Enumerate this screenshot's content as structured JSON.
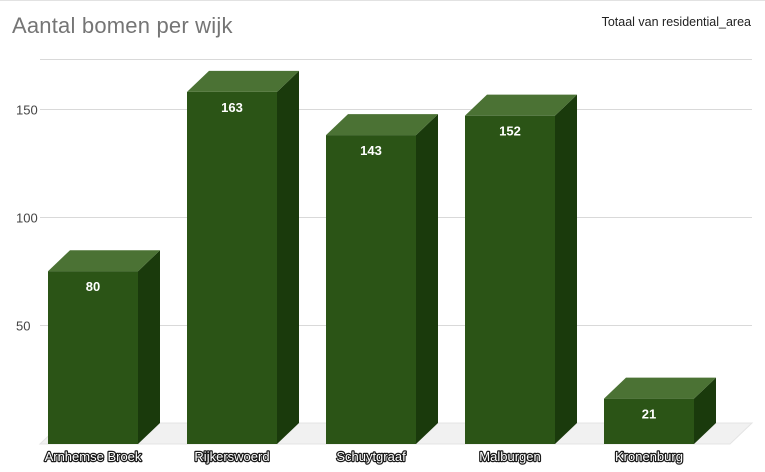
{
  "chart_data": {
    "type": "bar",
    "title": "Aantal bomen per wijk",
    "categories": [
      "Arnhemse Broek",
      "Rijkerswoerd",
      "Schuytgraaf",
      "Malburgen",
      "Kronenburg"
    ],
    "series": [
      {
        "name": "Totaal van residential_area",
        "values": [
          80,
          163,
          143,
          152,
          21
        ]
      }
    ],
    "yticks": [
      50,
      100,
      150
    ],
    "ylim": [
      0,
      175
    ],
    "xlabel": "",
    "ylabel": "",
    "grid": true,
    "legend_position": "top-right",
    "style": "3d-column",
    "colors": {
      "front": "#2b5416",
      "top": "#4b7234",
      "side": "#1a3a0c",
      "grid": "#d9d9d9",
      "floor": "#e4e4e4"
    }
  }
}
